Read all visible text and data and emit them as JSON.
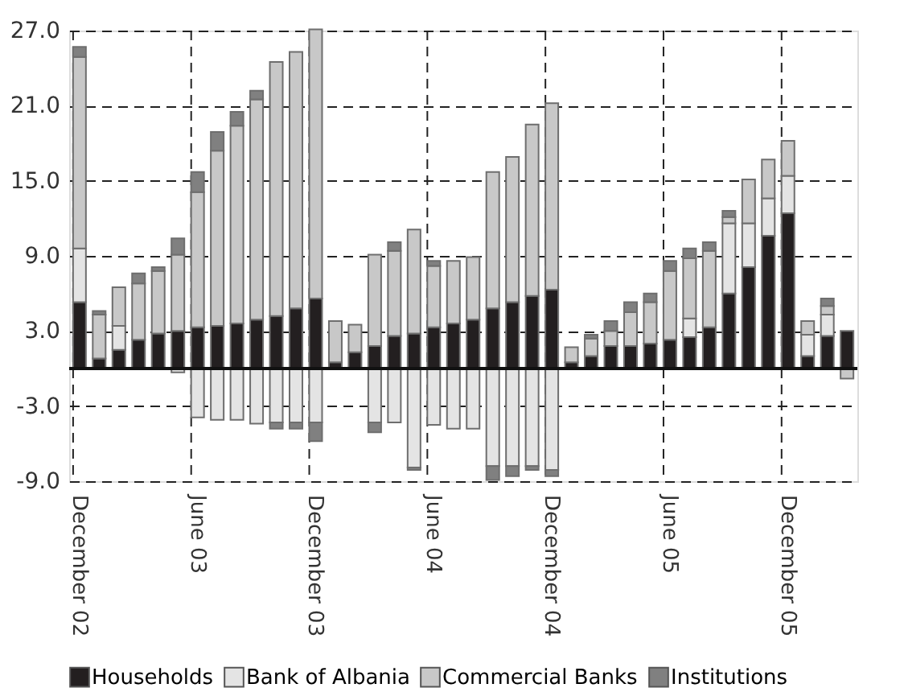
{
  "chart_data": {
    "type": "bar",
    "stacked": true,
    "categories": [
      "December 02",
      null,
      null,
      null,
      null,
      null,
      "June 03",
      null,
      null,
      null,
      null,
      null,
      "December 03",
      null,
      null,
      null,
      null,
      null,
      "June 04",
      null,
      null,
      null,
      null,
      null,
      "December 04",
      null,
      null,
      null,
      null,
      null,
      "June 05",
      null,
      null,
      null,
      null,
      null,
      "December 05",
      null,
      null,
      null
    ],
    "series": [
      {
        "name": "Households",
        "color": "#231f20",
        "values": [
          5.3,
          0.8,
          1.5,
          2.3,
          2.8,
          3.0,
          3.3,
          3.4,
          3.6,
          3.9,
          4.2,
          4.8,
          5.6,
          0.5,
          1.3,
          1.8,
          2.6,
          2.8,
          3.3,
          3.6,
          3.9,
          4.8,
          5.3,
          5.8,
          6.3,
          0.5,
          1.0,
          1.8,
          1.8,
          2.0,
          2.3,
          2.5,
          3.3,
          6.0,
          8.1,
          10.6,
          12.4,
          1.0,
          2.6,
          3.0
        ]
      },
      {
        "name": "Bank of Albania",
        "color": "#e4e4e4",
        "values": [
          4.3,
          null,
          1.9,
          null,
          null,
          -0.3,
          -3.9,
          -4.1,
          -4.1,
          -4.4,
          -4.3,
          -4.3,
          -4.3,
          null,
          null,
          -4.3,
          -4.3,
          -7.9,
          -4.5,
          -4.8,
          -4.8,
          -7.8,
          -7.8,
          -7.8,
          -8.1,
          null,
          null,
          null,
          null,
          null,
          null,
          1.5,
          null,
          5.6,
          3.5,
          3.0,
          3.0,
          1.7,
          1.7,
          null
        ]
      },
      {
        "name": "Commercial Banks",
        "color": "#c8c8c8",
        "values": [
          15.3,
          3.5,
          3.1,
          4.5,
          5.0,
          6.1,
          10.8,
          14.0,
          15.8,
          17.6,
          20.3,
          20.5,
          21.5,
          3.3,
          2.2,
          7.3,
          6.8,
          8.3,
          4.9,
          5.0,
          5.0,
          10.9,
          11.6,
          13.7,
          14.9,
          1.2,
          1.4,
          1.2,
          2.7,
          3.3,
          5.5,
          4.8,
          6.1,
          0.5,
          3.5,
          3.1,
          2.8,
          1.1,
          0.7,
          -0.8
        ]
      },
      {
        "name": "Institutions",
        "color": "#808080",
        "values": [
          0.8,
          0.3,
          null,
          0.8,
          0.3,
          1.3,
          1.6,
          1.5,
          1.1,
          0.7,
          -0.5,
          -0.5,
          -1.5,
          null,
          null,
          -0.8,
          0.7,
          -0.2,
          0.4,
          null,
          null,
          -1.1,
          -0.8,
          -0.3,
          -0.5,
          null,
          0.3,
          0.8,
          0.8,
          0.7,
          0.8,
          0.8,
          0.7,
          0.5,
          null,
          null,
          null,
          null,
          0.6,
          null
        ]
      }
    ],
    "ylim": [
      -9,
      27
    ],
    "yticks": [
      {
        "value": -9,
        "label": "-9.0"
      },
      {
        "value": -3,
        "label": "-3.0"
      },
      {
        "value": 3,
        "label": "3.0"
      },
      {
        "value": 9,
        "label": "9.0"
      },
      {
        "value": 15,
        "label": "15.0"
      },
      {
        "value": 21,
        "label": "21.0"
      },
      {
        "value": 27,
        "label": "27.0"
      }
    ],
    "grid": true,
    "ref_lines": [
      {
        "axis": "y",
        "value": 0
      }
    ],
    "legend": "bottom"
  }
}
